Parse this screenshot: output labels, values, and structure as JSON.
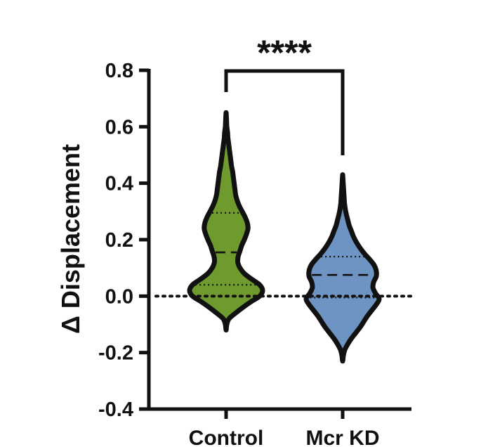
{
  "chart_data": {
    "type": "violin",
    "ylabel": "Δ Displacement",
    "ylim": [
      -0.4,
      0.8
    ],
    "yticks": [
      "0.8",
      "0.6",
      "0.4",
      "0.2",
      "0.0",
      "-0.2",
      "-0.4"
    ],
    "ytick_values": [
      0.8,
      0.6,
      0.4,
      0.2,
      0.0,
      -0.2,
      -0.4
    ],
    "categories": [
      "Control",
      "Mcr KD"
    ],
    "reference_line": 0.0,
    "significance": {
      "label": "****",
      "between": [
        "Control",
        "Mcr KD"
      ]
    },
    "series": [
      {
        "name": "Control",
        "color": "#6e9a2e",
        "min": -0.12,
        "max": 0.65,
        "q1": 0.04,
        "median": 0.155,
        "q3": 0.295,
        "density": [
          [
            -0.12,
            0.0
          ],
          [
            -0.1,
            0.02
          ],
          [
            -0.08,
            0.08
          ],
          [
            -0.06,
            0.26
          ],
          [
            -0.04,
            0.46
          ],
          [
            -0.02,
            0.68
          ],
          [
            0.0,
            0.92
          ],
          [
            0.02,
            1.0
          ],
          [
            0.04,
            0.92
          ],
          [
            0.06,
            0.7
          ],
          [
            0.08,
            0.5
          ],
          [
            0.1,
            0.38
          ],
          [
            0.12,
            0.32
          ],
          [
            0.14,
            0.33
          ],
          [
            0.16,
            0.38
          ],
          [
            0.18,
            0.43
          ],
          [
            0.2,
            0.5
          ],
          [
            0.22,
            0.56
          ],
          [
            0.24,
            0.6
          ],
          [
            0.26,
            0.58
          ],
          [
            0.28,
            0.52
          ],
          [
            0.3,
            0.44
          ],
          [
            0.32,
            0.36
          ],
          [
            0.34,
            0.3
          ],
          [
            0.36,
            0.26
          ],
          [
            0.38,
            0.24
          ],
          [
            0.4,
            0.22
          ],
          [
            0.42,
            0.2
          ],
          [
            0.44,
            0.18
          ],
          [
            0.46,
            0.15
          ],
          [
            0.48,
            0.13
          ],
          [
            0.5,
            0.11
          ],
          [
            0.52,
            0.09
          ],
          [
            0.54,
            0.07
          ],
          [
            0.56,
            0.05
          ],
          [
            0.58,
            0.04
          ],
          [
            0.6,
            0.02
          ],
          [
            0.63,
            0.01
          ],
          [
            0.65,
            0.0
          ]
        ]
      },
      {
        "name": "Mcr KD",
        "color": "#6d94c2",
        "min": -0.23,
        "max": 0.43,
        "q1": -0.005,
        "median": 0.075,
        "q3": 0.14,
        "density": [
          [
            -0.23,
            0.0
          ],
          [
            -0.21,
            0.02
          ],
          [
            -0.19,
            0.06
          ],
          [
            -0.17,
            0.14
          ],
          [
            -0.15,
            0.24
          ],
          [
            -0.13,
            0.36
          ],
          [
            -0.11,
            0.48
          ],
          [
            -0.09,
            0.58
          ],
          [
            -0.07,
            0.68
          ],
          [
            -0.05,
            0.8
          ],
          [
            -0.03,
            0.92
          ],
          [
            -0.01,
            1.0
          ],
          [
            0.01,
            0.9
          ],
          [
            0.03,
            0.83
          ],
          [
            0.05,
            0.85
          ],
          [
            0.07,
            0.92
          ],
          [
            0.09,
            0.92
          ],
          [
            0.11,
            0.86
          ],
          [
            0.13,
            0.74
          ],
          [
            0.15,
            0.6
          ],
          [
            0.17,
            0.48
          ],
          [
            0.19,
            0.38
          ],
          [
            0.21,
            0.3
          ],
          [
            0.23,
            0.24
          ],
          [
            0.25,
            0.18
          ],
          [
            0.27,
            0.14
          ],
          [
            0.29,
            0.1
          ],
          [
            0.31,
            0.07
          ],
          [
            0.33,
            0.05
          ],
          [
            0.35,
            0.04
          ],
          [
            0.37,
            0.03
          ],
          [
            0.39,
            0.02
          ],
          [
            0.41,
            0.01
          ],
          [
            0.43,
            0.0
          ]
        ]
      }
    ]
  }
}
